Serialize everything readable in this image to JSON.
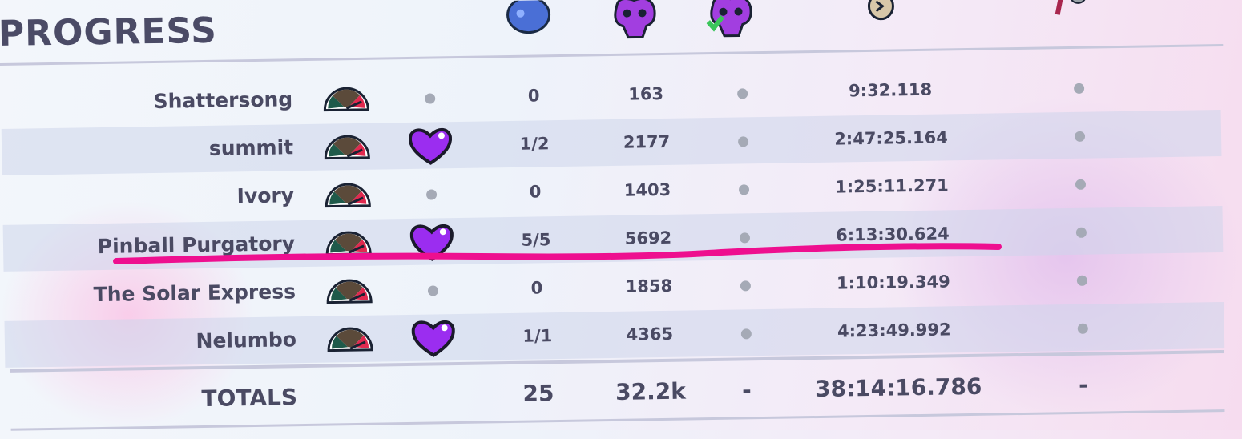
{
  "title": "PROGRESS",
  "header_icons": [
    "strawberry-icon",
    "skull-deaths-icon",
    "skull-golden-deaths-icon",
    "clock-icon",
    "flag-icon"
  ],
  "colors": {
    "heart": "#9b2df0",
    "underline": "#ee0f8f",
    "text": "#4a4a63",
    "dot": "#a5aab6"
  },
  "rows": [
    {
      "name": "Shattersong",
      "heart": false,
      "strawberries": "0",
      "deaths": "163",
      "time": "9:32.118"
    },
    {
      "name": "summit",
      "heart": true,
      "strawberries": "1/2",
      "deaths": "2177",
      "time": "2:47:25.164"
    },
    {
      "name": "Ivory",
      "heart": false,
      "strawberries": "0",
      "deaths": "1403",
      "time": "1:25:11.271"
    },
    {
      "name": "Pinball Purgatory",
      "heart": true,
      "strawberries": "5/5",
      "deaths": "5692",
      "time": "6:13:30.624"
    },
    {
      "name": "The Solar Express",
      "heart": false,
      "strawberries": "0",
      "deaths": "1858",
      "time": "1:10:19.349"
    },
    {
      "name": "Nelumbo",
      "heart": true,
      "strawberries": "1/1",
      "deaths": "4365",
      "time": "4:23:49.992"
    }
  ],
  "totals": {
    "label": "TOTALS",
    "strawberries": "25",
    "deaths": "32.2k",
    "golden": "-",
    "time": "38:14:16.786",
    "last": "-"
  }
}
